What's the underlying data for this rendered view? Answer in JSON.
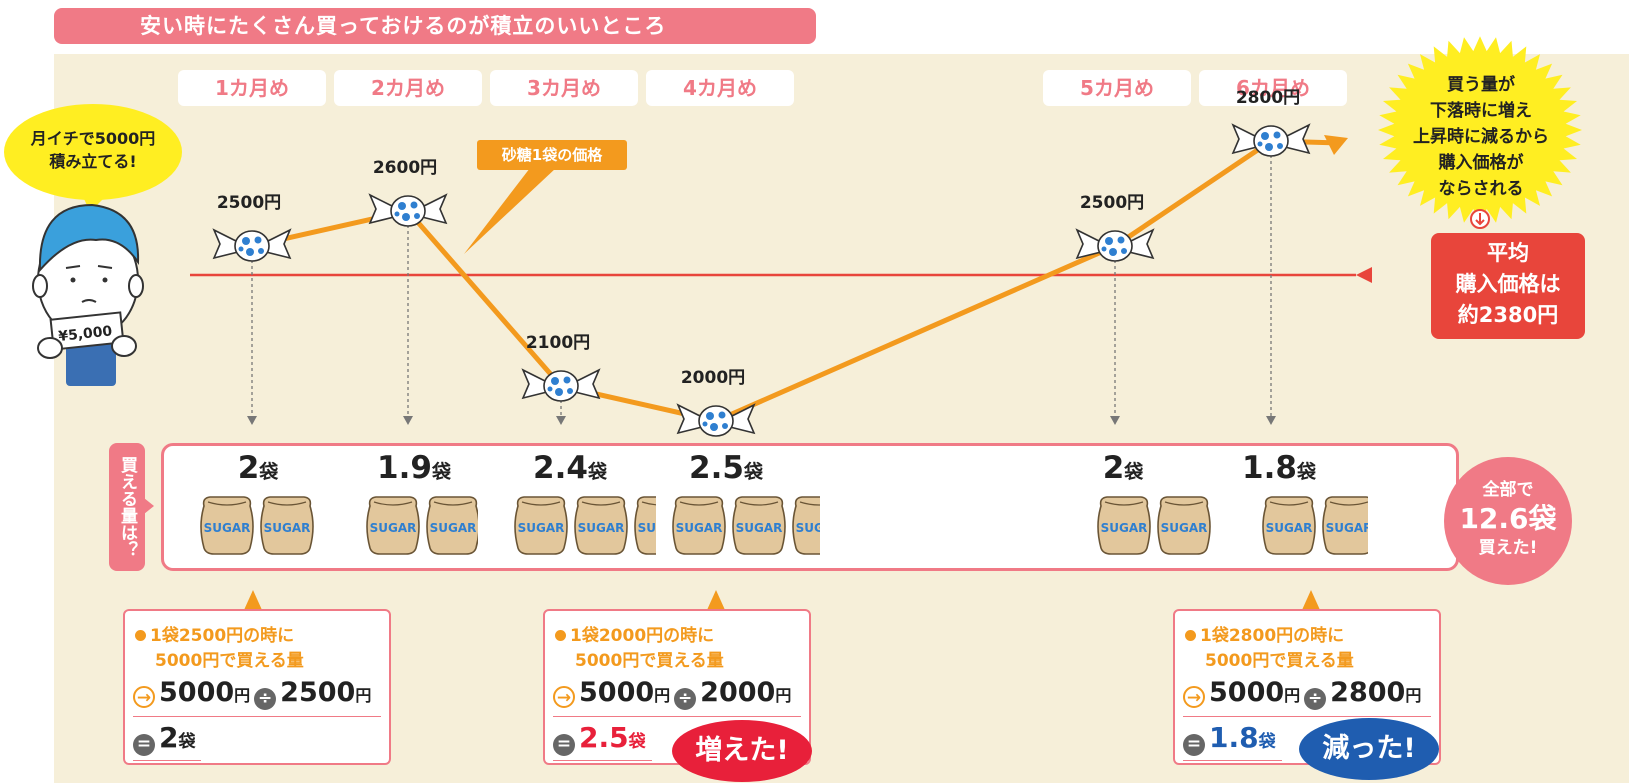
{
  "title": "安い時にたくさん買っておけるのが積立のいいところ",
  "speech": {
    "line1": "月イチで5000円",
    "line2": "積み立てる!"
  },
  "person_note": "¥5,000",
  "callout_price": "砂糖1袋の価格",
  "burst": {
    "line1": "買う量が",
    "line2": "下落時に増え",
    "line3": "上昇時に減るから",
    "line4": "購入価格が",
    "line5": "ならされる"
  },
  "average": {
    "line1": "平均",
    "line2": "購入価格は",
    "line3": "約2380円"
  },
  "row_tag": "買える量は？",
  "total": {
    "line1": "全部で",
    "line2": "12.6袋",
    "line3": "買えた!"
  },
  "bag_label": "SUGAR",
  "chart_data": {
    "type": "line",
    "categories": [
      "1カ月め",
      "2カ月め",
      "3カ月め",
      "4カ月め",
      "5カ月め",
      "6カ月め"
    ],
    "series": [
      {
        "values": [
          2500,
          2600,
          2100,
          2000,
          2500,
          2800
        ]
      }
    ],
    "price_labels": [
      "2500円",
      "2600円",
      "2100円",
      "2000円",
      "2500円",
      "2800円"
    ],
    "average_price": 2380,
    "quantities": [
      2,
      1.9,
      2.4,
      2.5,
      2,
      1.8
    ],
    "quantity_labels": [
      "2",
      "1.9",
      "2.4",
      "2.5",
      "2",
      "1.8"
    ],
    "quantity_unit": "袋"
  },
  "calcs": [
    {
      "line1": "1袋2500円の時に",
      "line2": "5000円で買える量",
      "a": "5000",
      "b": "2500",
      "unit_yen": "円",
      "result": "2",
      "result_unit": "袋",
      "result_color": "#222222"
    },
    {
      "line1": "1袋2000円の時に",
      "line2": "5000円で買える量",
      "a": "5000",
      "b": "2000",
      "unit_yen": "円",
      "result": "2.5",
      "result_unit": "袋",
      "result_color": "#e8203a"
    },
    {
      "line1": "1袋2800円の時に",
      "line2": "5000円で買える量",
      "a": "5000",
      "b": "2800",
      "unit_yen": "円",
      "result": "1.8",
      "result_unit": "袋",
      "result_color": "#1f5db0"
    }
  ],
  "badges": {
    "up": "増えた!",
    "down": "減った!"
  },
  "colors": {
    "accent": "#f07a86",
    "line": "#f39a1e",
    "avg_line": "#e8453b",
    "background": "#f6efd9"
  }
}
